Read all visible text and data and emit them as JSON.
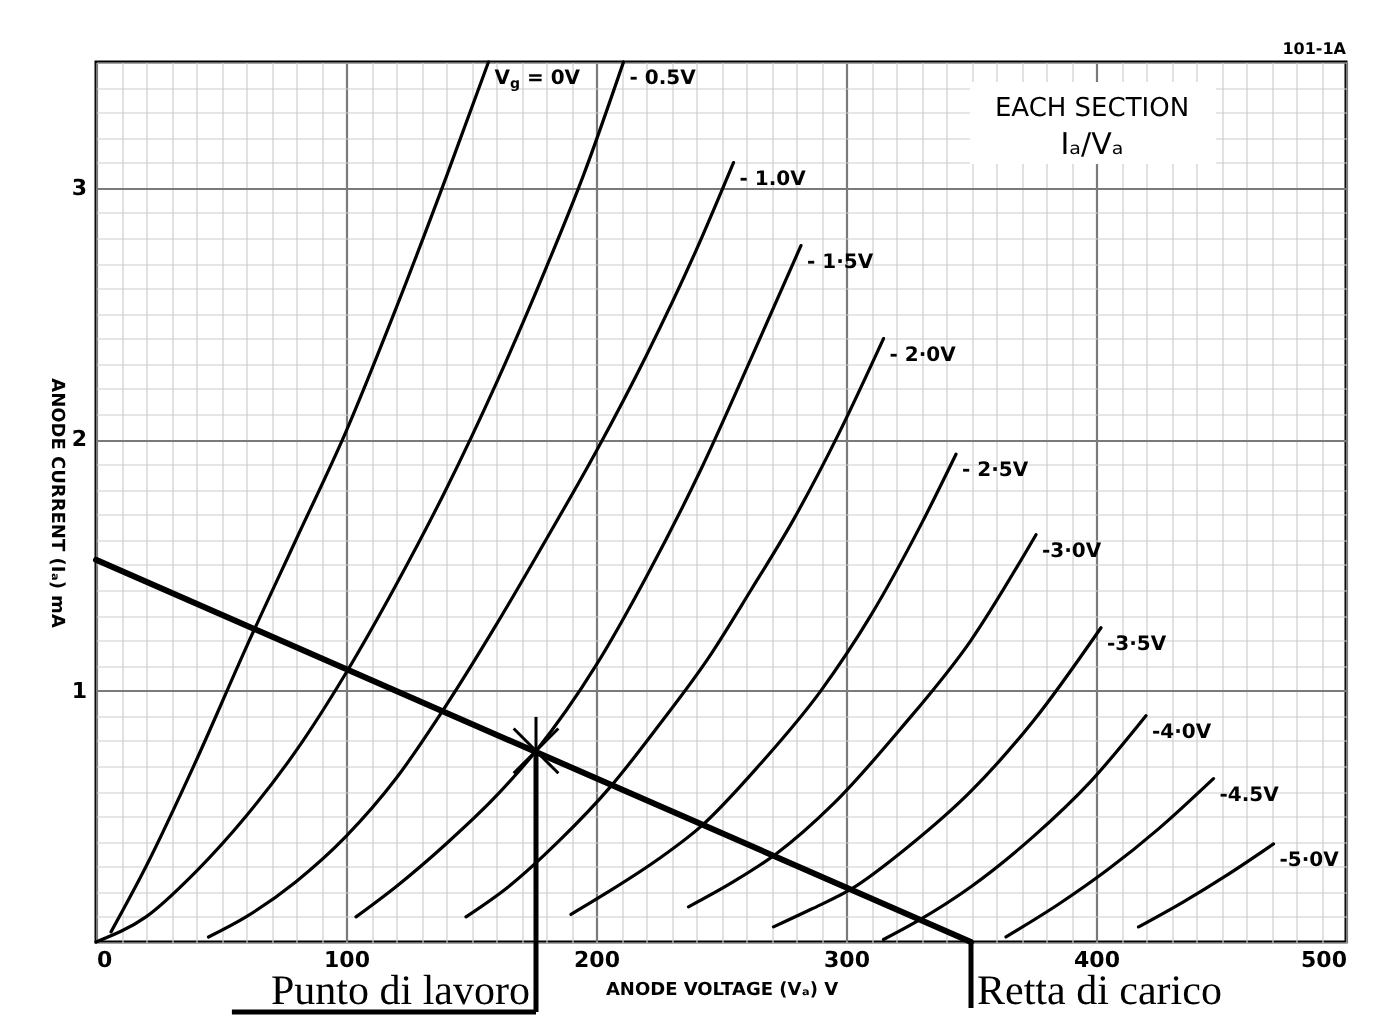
{
  "chart_data": {
    "type": "line",
    "xlabel": "ANODE VOLTAGE (Vₐ) V",
    "ylabel": "ANODE CURRENT (Iₐ) mA",
    "xlim": [
      0,
      500
    ],
    "ylim": [
      0,
      3.5
    ],
    "xticks": [
      0,
      {
        "value": 10,
        "label": null
      },
      {
        "value": 20,
        "label": null
      },
      {
        "value": 30,
        "label": null
      },
      {
        "value": 40,
        "label": null
      },
      {
        "value": 50,
        "label": null
      },
      {
        "value": 60,
        "label": null
      },
      {
        "value": 70,
        "label": null
      },
      {
        "value": 80,
        "label": null
      },
      {
        "value": 90,
        "label": null
      },
      100,
      {
        "value": 110,
        "label": null
      },
      {
        "value": 120,
        "label": null
      },
      {
        "value": 130,
        "label": null
      },
      {
        "value": 140,
        "label": null
      },
      {
        "value": 150,
        "label": null
      },
      {
        "value": 160,
        "label": null
      },
      {
        "value": 170,
        "label": null
      },
      {
        "value": 180,
        "label": null
      },
      {
        "value": 190,
        "label": null
      },
      200,
      {
        "value": 210,
        "label": null
      },
      {
        "value": 220,
        "label": null
      },
      {
        "value": 230,
        "label": null
      },
      {
        "value": 240,
        "label": null
      },
      {
        "value": 250,
        "label": null
      },
      {
        "value": 260,
        "label": null
      },
      {
        "value": 270,
        "label": null
      },
      {
        "value": 280,
        "label": null
      },
      {
        "value": 290,
        "label": null
      },
      300,
      {
        "value": 310,
        "label": null
      },
      {
        "value": 320,
        "label": null
      },
      {
        "value": 330,
        "label": null
      },
      {
        "value": 340,
        "label": null
      },
      {
        "value": 350,
        "label": null
      },
      {
        "value": 360,
        "label": null
      },
      {
        "value": 370,
        "label": null
      },
      {
        "value": 380,
        "label": null
      },
      {
        "value": 390,
        "label": null
      },
      400,
      {
        "value": 410,
        "label": null
      },
      {
        "value": 420,
        "label": null
      },
      {
        "value": 430,
        "label": null
      },
      {
        "value": 440,
        "label": null
      },
      {
        "value": 450,
        "label": null
      },
      {
        "value": 460,
        "label": null
      },
      {
        "value": 470,
        "label": null
      },
      {
        "value": 480,
        "label": null
      },
      {
        "value": 490,
        "label": null
      },
      500
    ],
    "yticks": [
      {
        "value": 0,
        "label": null
      },
      {
        "value": 0.1,
        "label": null
      },
      {
        "value": 0.2,
        "label": null
      },
      {
        "value": 0.3,
        "label": null
      },
      {
        "value": 0.4,
        "label": null
      },
      {
        "value": 0.5,
        "label": null
      },
      {
        "value": 0.6,
        "label": null
      },
      {
        "value": 0.7,
        "label": null
      },
      {
        "value": 0.8,
        "label": null
      },
      {
        "value": 0.9,
        "label": null
      },
      1,
      {
        "value": 1.1,
        "label": null
      },
      {
        "value": 1.2,
        "label": null
      },
      {
        "value": 1.3,
        "label": null
      },
      {
        "value": 1.4,
        "label": null
      },
      {
        "value": 1.5,
        "label": null
      },
      {
        "value": 1.6,
        "label": null
      },
      {
        "value": 1.7,
        "label": null
      },
      {
        "value": 1.8,
        "label": null
      },
      {
        "value": 1.9,
        "label": null
      },
      2,
      {
        "value": 2.1,
        "label": null
      },
      {
        "value": 2.2,
        "label": null
      },
      {
        "value": 2.3,
        "label": null
      },
      {
        "value": 2.4,
        "label": null
      },
      {
        "value": 2.5,
        "label": null
      },
      {
        "value": 2.6,
        "label": null
      },
      {
        "value": 2.7,
        "label": null
      },
      {
        "value": 2.8,
        "label": null
      },
      {
        "value": 2.9,
        "label": null
      },
      3,
      {
        "value": 3.1,
        "label": null
      },
      {
        "value": 3.2,
        "label": null
      },
      {
        "value": 3.3,
        "label": null
      },
      {
        "value": 3.4,
        "label": null
      },
      {
        "value": 3.5,
        "label": null
      }
    ],
    "grid": true,
    "annotations": [
      "101-1A",
      "EACH SECTION",
      "Iₐ/Vₐ",
      {
        "text": "Punto di lavoro",
        "x": 176,
        "y": 0.76
      },
      {
        "text": "Retta di carico",
        "x": 350,
        "y": 0
      }
    ],
    "series": [
      {
        "name": "V$_{g}$ = 0V",
        "color": "#000000",
        "x": [
          6,
          20,
          40,
          60,
          80,
          100,
          120,
          140,
          157
        ],
        "values": [
          0.04,
          0.3,
          0.72,
          1.17,
          1.6,
          2.03,
          2.52,
          3.04,
          3.5
        ]
      },
      {
        "name": "- 0.5V",
        "color": "#000000",
        "x": [
          0,
          20,
          40,
          60,
          80,
          100,
          120,
          140,
          160,
          180,
          195,
          211
        ],
        "values": [
          0,
          0.1,
          0.28,
          0.5,
          0.76,
          1.07,
          1.42,
          1.8,
          2.22,
          2.68,
          3.05,
          3.5
        ]
      },
      {
        "name": "- 1.0V",
        "color": "#000000",
        "x": [
          45,
          60,
          80,
          100,
          120,
          140,
          160,
          180,
          200,
          220,
          240,
          255
        ],
        "values": [
          0.02,
          0.1,
          0.24,
          0.42,
          0.65,
          0.94,
          1.26,
          1.6,
          1.95,
          2.33,
          2.75,
          3.1
        ]
      },
      {
        "name": "- 1·5V",
        "color": "#000000",
        "x": [
          104,
          120,
          140,
          160,
          176,
          200,
          220,
          242,
          262,
          282
        ],
        "values": [
          0.1,
          0.22,
          0.39,
          0.58,
          0.76,
          1.1,
          1.45,
          1.88,
          2.32,
          2.77
        ]
      },
      {
        "name": "- 2·0V",
        "color": "#000000",
        "x": [
          148,
          165,
          185,
          206,
          225,
          245,
          262,
          279,
          297,
          315
        ],
        "values": [
          0.1,
          0.22,
          0.4,
          0.62,
          0.86,
          1.13,
          1.4,
          1.68,
          2.02,
          2.4
        ]
      },
      {
        "name": "- 2·5V",
        "color": "#000000",
        "x": [
          190,
          205,
          225,
          242,
          265,
          290,
          310,
          330,
          344
        ],
        "values": [
          0.11,
          0.2,
          0.33,
          0.46,
          0.7,
          1.0,
          1.3,
          1.66,
          1.94
        ]
      },
      {
        "name": "-3·0V",
        "color": "#000000",
        "x": [
          237,
          255,
          272,
          295,
          322,
          350,
          376
        ],
        "values": [
          0.14,
          0.24,
          0.35,
          0.55,
          0.85,
          1.2,
          1.62
        ]
      },
      {
        "name": "-3·5V",
        "color": "#000000",
        "x": [
          271,
          286,
          302,
          325,
          350,
          375,
          402
        ],
        "values": [
          0.06,
          0.13,
          0.21,
          0.38,
          0.6,
          0.88,
          1.25
        ]
      },
      {
        "name": "-4·0V",
        "color": "#000000",
        "x": [
          315,
          328,
          350,
          375,
          398,
          420
        ],
        "values": [
          0.01,
          0.08,
          0.22,
          0.42,
          0.64,
          0.9
        ]
      },
      {
        "name": "-4.5V",
        "color": "#000000",
        "x": [
          364,
          385,
          405,
          425,
          447
        ],
        "values": [
          0.02,
          0.15,
          0.29,
          0.45,
          0.65
        ]
      },
      {
        "name": "-5·0V",
        "color": "#000000",
        "x": [
          417,
          435,
          453,
          471
        ],
        "values": [
          0.06,
          0.16,
          0.27,
          0.39
        ]
      },
      {
        "type": "line",
        "color": "#000000",
        "x": [
          0,
          350
        ],
        "values": [
          1.52,
          0
        ]
      },
      {
        "type": "scatter",
        "marker": "cross",
        "color": "#000000",
        "x": [
          176
        ],
        "values": [
          0.76
        ]
      }
    ]
  }
}
